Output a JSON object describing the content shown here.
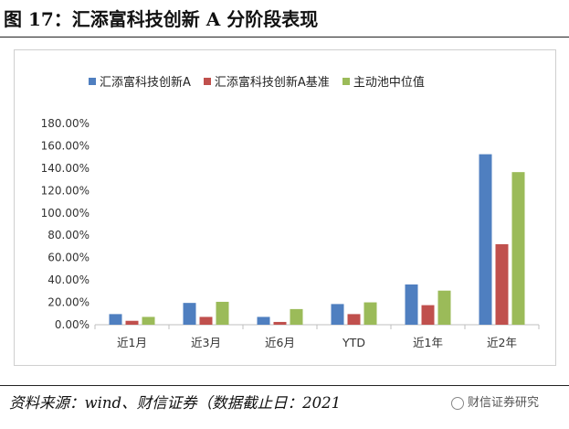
{
  "figure": {
    "title": "图 17：汇添富科技创新 A 分阶段表现",
    "source": "资料来源：wind、财信证券（数据截止日：2021",
    "watermark": "财信证券研究",
    "watermark_icon": "wechat-icon"
  },
  "chart_data": {
    "type": "bar",
    "title": "",
    "xlabel": "",
    "ylabel": "",
    "categories": [
      "近1月",
      "近3月",
      "近6月",
      "YTD",
      "近1年",
      "近2年"
    ],
    "series": [
      {
        "name": "汇添富科技创新A",
        "color": "#4f7fc0",
        "values": [
          9.5,
          19.5,
          7.0,
          18.5,
          36.0,
          152.5
        ]
      },
      {
        "name": "汇添富科技创新A基准",
        "color": "#c0504d",
        "values": [
          3.5,
          7.0,
          2.5,
          9.5,
          17.5,
          72.0
        ]
      },
      {
        "name": "主动池中位值",
        "color": "#9bbb59",
        "values": [
          7.0,
          20.5,
          14.0,
          20.0,
          30.5,
          136.5
        ]
      }
    ],
    "ylim": [
      0,
      180
    ],
    "y_ticks": [
      "0.00%",
      "20.00%",
      "40.00%",
      "60.00%",
      "80.00%",
      "100.00%",
      "120.00%",
      "140.00%",
      "160.00%",
      "180.00%"
    ],
    "y_unit": "%",
    "grid": false,
    "legend_position": "top-left"
  }
}
